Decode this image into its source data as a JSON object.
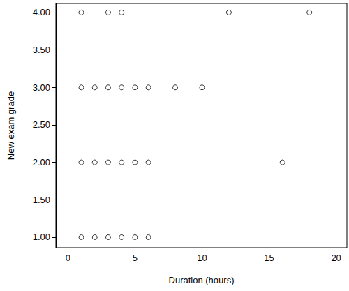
{
  "chart_data": {
    "type": "scatter",
    "x_label": "Duration (hours)",
    "y_label": "New exam grade",
    "x": [
      1,
      3,
      4,
      12,
      18,
      1,
      2,
      3,
      4,
      5,
      6,
      8,
      10,
      1,
      2,
      3,
      4,
      5,
      6,
      16,
      1,
      2,
      3,
      4,
      5,
      6
    ],
    "values": [
      4,
      4,
      4,
      4,
      4,
      3,
      3,
      3,
      3,
      3,
      3,
      3,
      3,
      2,
      2,
      2,
      2,
      2,
      2,
      2,
      1,
      1,
      1,
      1,
      1,
      1
    ],
    "color": "#000000",
    "marker": "circle_open",
    "xlim": [
      -0.9,
      20.8
    ],
    "xticks": [
      0,
      5,
      10,
      15,
      20
    ],
    "ylim": [
      0.86,
      4.12
    ],
    "yticks": [
      {
        "value": 1,
        "label": "1.00"
      },
      {
        "value": 1.5,
        "label": "1.50"
      },
      {
        "value": 2,
        "label": "2.00"
      },
      {
        "value": 2.5,
        "label": "2.50"
      },
      {
        "value": 3,
        "label": "3.00"
      },
      {
        "value": 3.5,
        "label": "3.50"
      },
      {
        "value": 4,
        "label": "4.00"
      }
    ],
    "grid": false
  }
}
